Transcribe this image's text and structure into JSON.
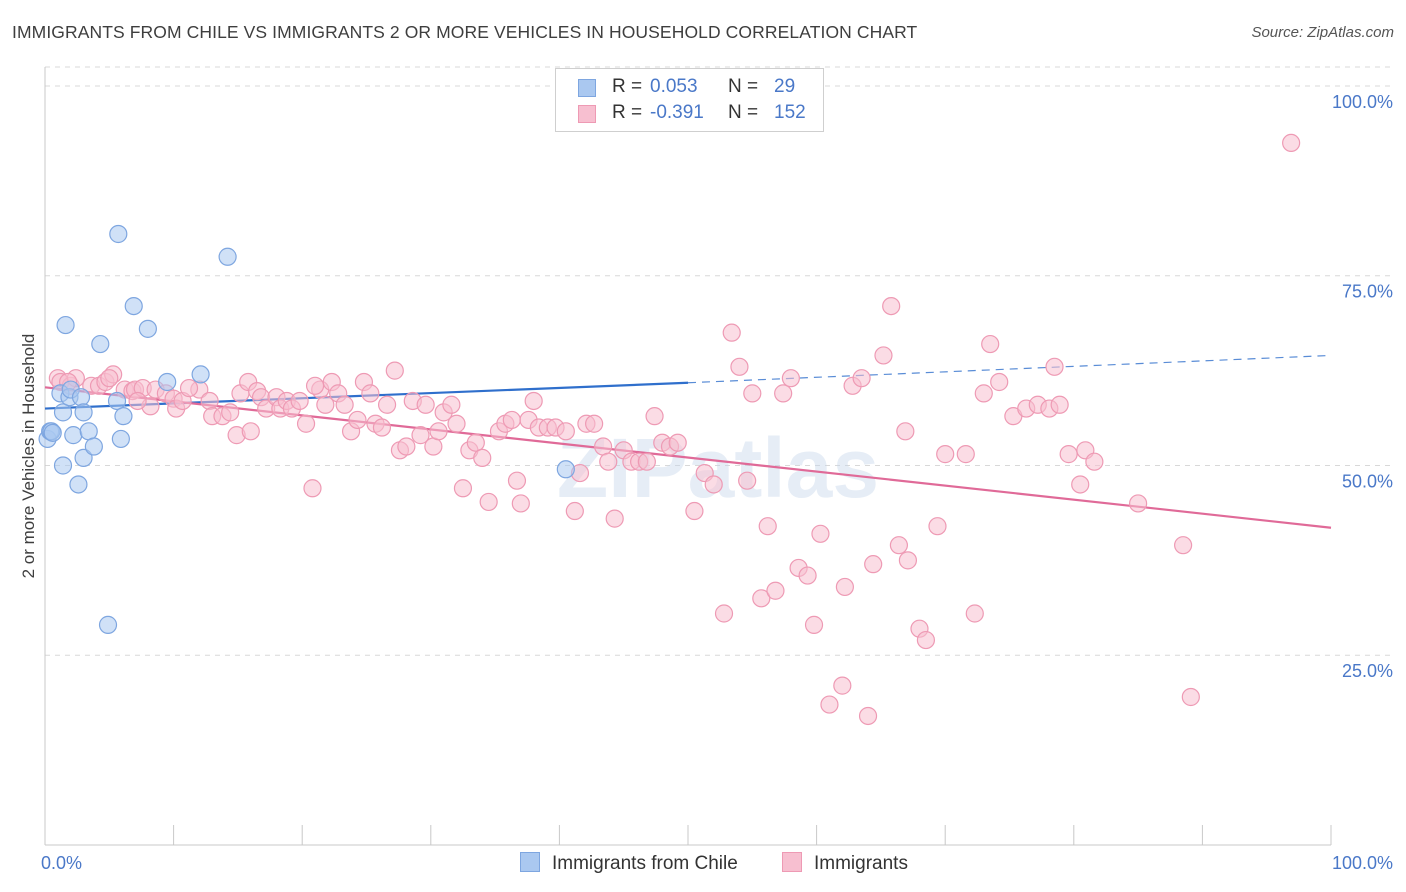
{
  "title": "IMMIGRANTS FROM CHILE VS IMMIGRANTS 2 OR MORE VEHICLES IN HOUSEHOLD CORRELATION CHART",
  "source": "Source: ZipAtlas.com",
  "watermark": "ZIPatlas",
  "legend_stats": [
    {
      "r_label": "R =",
      "r_value": "0.053",
      "n_label": "N =",
      "n_value": "29",
      "color": "#aac8f0",
      "stroke": "#7ea6e0"
    },
    {
      "r_label": "R =",
      "r_value": "-0.391",
      "n_label": "N =",
      "n_value": "152",
      "color": "#f7bfd0",
      "stroke": "#ee9ab4"
    }
  ],
  "colors": {
    "blue_fill": "#aac8f0",
    "blue_stroke": "#7ea6e0",
    "blue_line": "#2f6fcc",
    "pink_fill": "#f7bfd0",
    "pink_stroke": "#ee9ab4",
    "pink_line": "#e06a98",
    "tick_text": "#4a78c8",
    "grid": "#d8d8d8"
  },
  "chart_data": {
    "type": "scatter",
    "title": "IMMIGRANTS FROM CHILE VS IMMIGRANTS 2 OR MORE VEHICLES IN HOUSEHOLD CORRELATION CHART",
    "xlabel": "",
    "ylabel": "2 or more Vehicles in Household",
    "xlim": [
      0,
      100
    ],
    "ylim": [
      0,
      102.5
    ],
    "x_tick_labels": [
      "0.0%",
      "100.0%"
    ],
    "y_ticks": [
      {
        "value": 25,
        "label": "25.0%"
      },
      {
        "value": 50,
        "label": "50.0%"
      },
      {
        "value": 75,
        "label": "75.0%"
      },
      {
        "value": 100,
        "label": "100.0%"
      }
    ],
    "grid": true,
    "legend_position": "bottom",
    "series": [
      {
        "name": "Immigrants from Chile",
        "color": "#aac8f0",
        "points": [
          [
            0.2,
            53.5
          ],
          [
            0.4,
            54.5
          ],
          [
            0.5,
            54.5
          ],
          [
            0.6,
            54.3
          ],
          [
            1.2,
            59.5
          ],
          [
            1.4,
            57.0
          ],
          [
            1.6,
            68.5
          ],
          [
            1.9,
            59.0
          ],
          [
            2.0,
            60.0
          ],
          [
            2.2,
            54.0
          ],
          [
            2.6,
            47.5
          ],
          [
            2.8,
            59.0
          ],
          [
            3.0,
            51.0
          ],
          [
            3.0,
            57.0
          ],
          [
            3.4,
            54.5
          ],
          [
            3.8,
            52.5
          ],
          [
            4.3,
            66.0
          ],
          [
            4.9,
            29.0
          ],
          [
            5.6,
            58.5
          ],
          [
            5.7,
            80.5
          ],
          [
            5.9,
            53.5
          ],
          [
            6.1,
            56.5
          ],
          [
            6.9,
            71.0
          ],
          [
            8.0,
            68.0
          ],
          [
            9.5,
            61.0
          ],
          [
            12.1,
            62.0
          ],
          [
            14.2,
            77.5
          ],
          [
            1.4,
            50.0
          ],
          [
            40.5,
            49.5
          ]
        ],
        "trend": {
          "x": [
            0,
            50
          ],
          "y": [
            57.5,
            60.9
          ],
          "dashed_to": [
            100,
            64.5
          ]
        }
      },
      {
        "name": "Immigrants",
        "color": "#f7bfd0",
        "points": [
          [
            1.0,
            61.5
          ],
          [
            1.2,
            61.0
          ],
          [
            2.0,
            60.5
          ],
          [
            2.4,
            61.5
          ],
          [
            3.6,
            60.5
          ],
          [
            4.2,
            60.5
          ],
          [
            4.7,
            61.0
          ],
          [
            5.3,
            62.0
          ],
          [
            6.2,
            60.0
          ],
          [
            6.8,
            59.8
          ],
          [
            7.0,
            60.0
          ],
          [
            7.6,
            60.2
          ],
          [
            8.2,
            57.8
          ],
          [
            8.6,
            60.0
          ],
          [
            9.4,
            59.5
          ],
          [
            10.0,
            58.8
          ],
          [
            10.2,
            57.5
          ],
          [
            10.7,
            58.5
          ],
          [
            12.0,
            60.0
          ],
          [
            12.8,
            58.5
          ],
          [
            13.0,
            56.5
          ],
          [
            13.8,
            56.5
          ],
          [
            14.4,
            57.0
          ],
          [
            14.9,
            54.0
          ],
          [
            15.2,
            59.5
          ],
          [
            15.8,
            61.0
          ],
          [
            16.5,
            59.8
          ],
          [
            16.8,
            59.0
          ],
          [
            17.2,
            57.5
          ],
          [
            18.0,
            59.0
          ],
          [
            18.3,
            57.5
          ],
          [
            18.8,
            58.5
          ],
          [
            19.2,
            57.5
          ],
          [
            19.8,
            58.5
          ],
          [
            20.3,
            55.5
          ],
          [
            20.8,
            47.0
          ],
          [
            21.4,
            60.0
          ],
          [
            21.8,
            58.0
          ],
          [
            22.3,
            61.0
          ],
          [
            22.8,
            59.5
          ],
          [
            23.3,
            58.0
          ],
          [
            23.8,
            54.5
          ],
          [
            24.3,
            56.0
          ],
          [
            24.8,
            61.0
          ],
          [
            25.3,
            59.5
          ],
          [
            25.7,
            55.5
          ],
          [
            26.2,
            55.0
          ],
          [
            26.6,
            58.0
          ],
          [
            27.2,
            62.5
          ],
          [
            27.6,
            52.0
          ],
          [
            28.1,
            52.5
          ],
          [
            28.6,
            58.5
          ],
          [
            29.2,
            54.0
          ],
          [
            29.6,
            58.0
          ],
          [
            30.2,
            52.5
          ],
          [
            30.6,
            54.5
          ],
          [
            31.0,
            57.0
          ],
          [
            31.6,
            58.0
          ],
          [
            32.0,
            55.5
          ],
          [
            32.5,
            47.0
          ],
          [
            33.0,
            52.0
          ],
          [
            33.5,
            53.0
          ],
          [
            34.0,
            51.0
          ],
          [
            35.3,
            54.5
          ],
          [
            35.8,
            55.5
          ],
          [
            36.3,
            56.0
          ],
          [
            36.7,
            48.0
          ],
          [
            37.0,
            45.0
          ],
          [
            37.6,
            56.0
          ],
          [
            38.0,
            58.5
          ],
          [
            38.4,
            55.0
          ],
          [
            39.1,
            55.0
          ],
          [
            39.7,
            55.0
          ],
          [
            40.5,
            54.5
          ],
          [
            41.2,
            44.0
          ],
          [
            41.6,
            49.0
          ],
          [
            42.1,
            55.5
          ],
          [
            42.7,
            55.5
          ],
          [
            43.4,
            52.5
          ],
          [
            43.8,
            50.5
          ],
          [
            44.3,
            43.0
          ],
          [
            45.0,
            52.0
          ],
          [
            45.6,
            50.5
          ],
          [
            46.2,
            50.5
          ],
          [
            46.8,
            50.5
          ],
          [
            47.4,
            56.5
          ],
          [
            48.0,
            53.0
          ],
          [
            48.6,
            52.5
          ],
          [
            49.2,
            53.0
          ],
          [
            50.5,
            44.0
          ],
          [
            51.3,
            49.0
          ],
          [
            52.0,
            47.5
          ],
          [
            52.8,
            30.5
          ],
          [
            53.4,
            67.5
          ],
          [
            54.0,
            63.0
          ],
          [
            54.6,
            48.0
          ],
          [
            55.0,
            59.5
          ],
          [
            55.7,
            32.5
          ],
          [
            56.2,
            42.0
          ],
          [
            56.8,
            33.5
          ],
          [
            57.4,
            59.5
          ],
          [
            58.0,
            61.5
          ],
          [
            58.6,
            36.5
          ],
          [
            59.3,
            35.5
          ],
          [
            59.8,
            29.0
          ],
          [
            60.3,
            41.0
          ],
          [
            61.0,
            18.5
          ],
          [
            62.0,
            21.0
          ],
          [
            62.2,
            34.0
          ],
          [
            62.8,
            60.5
          ],
          [
            63.5,
            61.5
          ],
          [
            64.0,
            17.0
          ],
          [
            64.4,
            37.0
          ],
          [
            65.2,
            64.5
          ],
          [
            65.8,
            71.0
          ],
          [
            66.4,
            39.5
          ],
          [
            66.9,
            54.5
          ],
          [
            67.1,
            37.5
          ],
          [
            68.0,
            28.5
          ],
          [
            68.5,
            27.0
          ],
          [
            69.4,
            42.0
          ],
          [
            70.0,
            51.5
          ],
          [
            71.6,
            51.5
          ],
          [
            72.3,
            30.5
          ],
          [
            73.0,
            59.5
          ],
          [
            73.5,
            66.0
          ],
          [
            74.2,
            61.0
          ],
          [
            75.3,
            56.5
          ],
          [
            76.3,
            57.5
          ],
          [
            77.2,
            58.0
          ],
          [
            78.1,
            57.5
          ],
          [
            78.5,
            63.0
          ],
          [
            78.9,
            58.0
          ],
          [
            79.6,
            51.5
          ],
          [
            80.5,
            47.5
          ],
          [
            80.9,
            52.0
          ],
          [
            81.6,
            50.5
          ],
          [
            85.0,
            45.0
          ],
          [
            88.5,
            39.5
          ],
          [
            89.1,
            19.5
          ],
          [
            96.9,
            92.5
          ],
          [
            16.0,
            54.5
          ],
          [
            1.8,
            61.0
          ],
          [
            5.0,
            61.5
          ],
          [
            7.2,
            58.5
          ],
          [
            11.2,
            60.2
          ],
          [
            21.0,
            60.5
          ],
          [
            34.5,
            45.2
          ]
        ],
        "trend": {
          "x": [
            0,
            100
          ],
          "y": [
            60.3,
            41.8
          ]
        }
      }
    ]
  }
}
